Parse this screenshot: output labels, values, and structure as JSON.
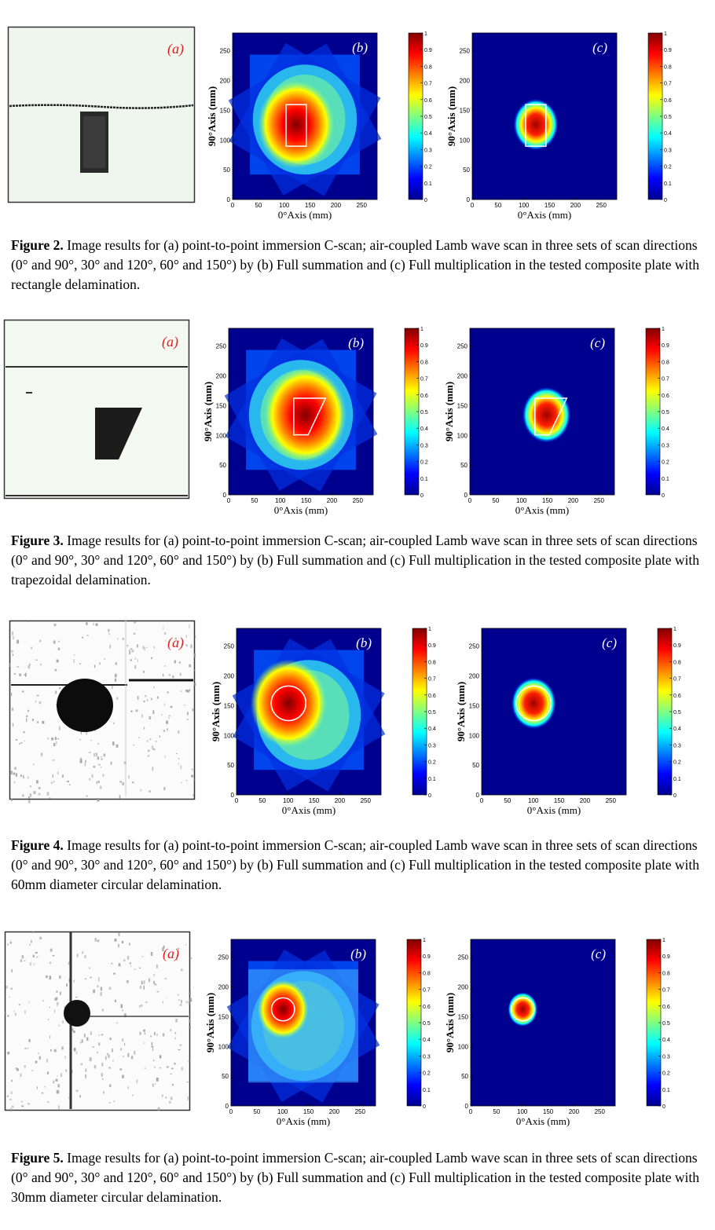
{
  "figures": [
    {
      "id": "fig2",
      "number_label": "Figure 2.",
      "caption": "Image results for (a) point-to-point immersion C-scan; air-coupled Lamb wave scan in three sets of scan directions (0° and 90°, 30° and 120°, 60° and 150°) by (b) Full summation and (c) Full multiplication in the tested composite plate with rectangle delamination.",
      "shape": "rect",
      "panel_a_label": "(a)",
      "panel_b_label": "(b)",
      "panel_c_label": "(c)"
    },
    {
      "id": "fig3",
      "number_label": "Figure 3.",
      "caption": "Image results for (a) point-to-point immersion C-scan; air-coupled Lamb wave scan in three sets of scan directions (0° and 90°, 30° and 120°, 60° and 150°) by (b) Full summation and (c) Full multiplication in the tested composite plate with trapezoidal delamination.",
      "shape": "trapezoid",
      "panel_a_label": "(a)",
      "panel_b_label": "(b)",
      "panel_c_label": "(c)"
    },
    {
      "id": "fig4",
      "number_label": "Figure 4.",
      "caption": "Image results for (a) point-to-point immersion C-scan; air-coupled Lamb wave scan in three sets of scan directions (0° and 90°, 30° and 120°, 60° and 150°) by (b) Full summation and (c) Full multiplication in the tested composite plate with 60mm diameter circular delamination.",
      "shape": "circle-large",
      "panel_a_label": "(a)",
      "panel_b_label": "(b)",
      "panel_c_label": "(c)"
    },
    {
      "id": "fig5",
      "number_label": "Figure 5.",
      "caption": "Image results for (a) point-to-point immersion C-scan; air-coupled Lamb wave scan in three sets of scan directions (0° and 90°, 30° and 120°, 60° and 150°) by (b) Full summation and (c) Full multiplication in the tested composite plate with 30mm diameter circular delamination.",
      "shape": "circle-small",
      "panel_a_label": "(a)",
      "panel_b_label": "(b)",
      "panel_c_label": "(c)"
    }
  ],
  "axes": {
    "xlabel": "0°Axis (mm)",
    "ylabel": "90°Axis (mm)",
    "x_ticks": [
      "0",
      "50",
      "100",
      "150",
      "200",
      "250"
    ],
    "y_ticks": [
      "0",
      "50",
      "100",
      "150",
      "200",
      "250"
    ]
  },
  "colorbar": {
    "ticks": [
      "0",
      "0.1",
      "0.2",
      "0.3",
      "0.4",
      "0.5",
      "0.6",
      "0.7",
      "0.8",
      "0.9",
      "1"
    ],
    "colors": [
      "#00008f",
      "#0000ff",
      "#0080ff",
      "#00ffff",
      "#80ff80",
      "#ffff00",
      "#ff8000",
      "#ff0000",
      "#800000"
    ]
  }
}
